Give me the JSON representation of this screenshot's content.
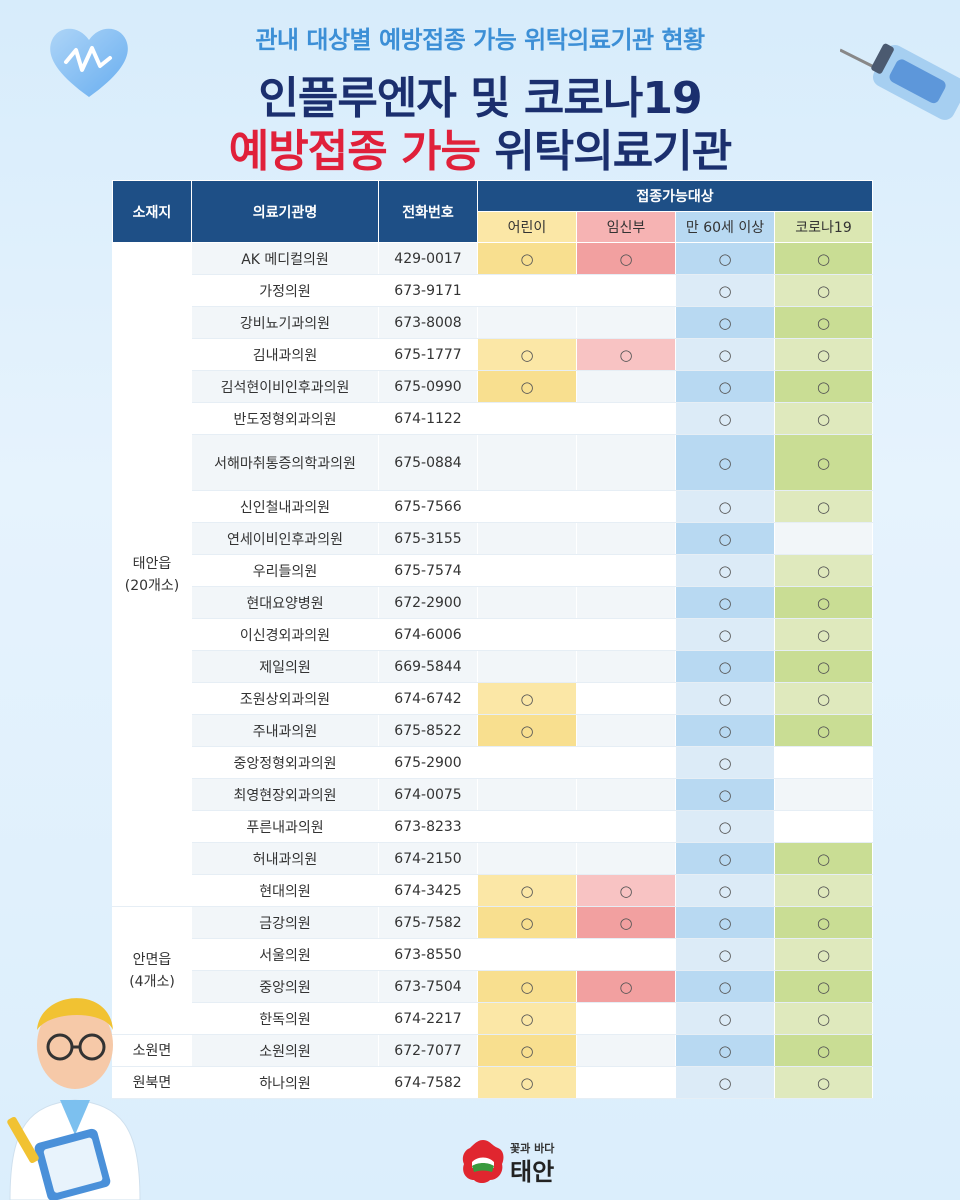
{
  "header": {
    "subtitle": "관내 대상별 예방접종 가능 위탁의료기관 현황",
    "title_line1": "인플루엔자 및 코로나19",
    "title_line2_red": "예방접종 가능",
    "title_line2_rest": " 위탁의료기관"
  },
  "table": {
    "col_region": "소재지",
    "col_name": "의료기관명",
    "col_phone": "전화번호",
    "col_targets": "접종가능대상",
    "sub_child": "어린이",
    "sub_preg": "임신부",
    "sub_60": "만 60세 이상",
    "sub_cov": "코로나19",
    "regions": [
      {
        "label": "태안읍\n(20개소)"
      },
      {
        "label": "안면읍\n(4개소)"
      },
      {
        "label": "소원면"
      },
      {
        "label": "원북면"
      }
    ],
    "rows": [
      {
        "name": "AK 메디컬의원",
        "phone": "429-0017",
        "child": "○",
        "preg": "○",
        "s60": "○",
        "cov": "○"
      },
      {
        "name": "가정의원",
        "phone": "673-9171",
        "child": "",
        "preg": "",
        "s60": "○",
        "cov": "○"
      },
      {
        "name": "강비뇨기과의원",
        "phone": "673-8008",
        "child": "",
        "preg": "",
        "s60": "○",
        "cov": "○"
      },
      {
        "name": "김내과의원",
        "phone": "675-1777",
        "child": "○",
        "preg": "○",
        "s60": "○",
        "cov": "○"
      },
      {
        "name": "김석현이비인후과의원",
        "phone": "675-0990",
        "child": "○",
        "preg": "",
        "s60": "○",
        "cov": "○"
      },
      {
        "name": "반도정형외과의원",
        "phone": "674-1122",
        "child": "",
        "preg": "",
        "s60": "○",
        "cov": "○"
      },
      {
        "name": "서해마취통증의학과의원",
        "phone": "675-0884",
        "child": "",
        "preg": "",
        "s60": "○",
        "cov": "○"
      },
      {
        "name": "신인철내과의원",
        "phone": "675-7566",
        "child": "",
        "preg": "",
        "s60": "○",
        "cov": "○"
      },
      {
        "name": "연세이비인후과의원",
        "phone": "675-3155",
        "child": "",
        "preg": "",
        "s60": "○",
        "cov": ""
      },
      {
        "name": "우리들의원",
        "phone": "675-7574",
        "child": "",
        "preg": "",
        "s60": "○",
        "cov": "○"
      },
      {
        "name": "현대요양병원",
        "phone": "672-2900",
        "child": "",
        "preg": "",
        "s60": "○",
        "cov": "○"
      },
      {
        "name": "이신경외과의원",
        "phone": "674-6006",
        "child": "",
        "preg": "",
        "s60": "○",
        "cov": "○"
      },
      {
        "name": "제일의원",
        "phone": "669-5844",
        "child": "",
        "preg": "",
        "s60": "○",
        "cov": "○"
      },
      {
        "name": "조원상외과의원",
        "phone": "674-6742",
        "child": "○",
        "preg": "",
        "s60": "○",
        "cov": "○"
      },
      {
        "name": "주내과의원",
        "phone": "675-8522",
        "child": "○",
        "preg": "",
        "s60": "○",
        "cov": "○"
      },
      {
        "name": "중앙정형외과의원",
        "phone": "675-2900",
        "child": "",
        "preg": "",
        "s60": "○",
        "cov": ""
      },
      {
        "name": "최영현장외과의원",
        "phone": "674-0075",
        "child": "",
        "preg": "",
        "s60": "○",
        "cov": ""
      },
      {
        "name": "푸른내과의원",
        "phone": "673-8233",
        "child": "",
        "preg": "",
        "s60": "○",
        "cov": ""
      },
      {
        "name": "허내과의원",
        "phone": "674-2150",
        "child": "",
        "preg": "",
        "s60": "○",
        "cov": "○"
      },
      {
        "name": "현대의원",
        "phone": "674-3425",
        "child": "○",
        "preg": "○",
        "s60": "○",
        "cov": "○"
      },
      {
        "name": "금강의원",
        "phone": "675-7582",
        "child": "○",
        "preg": "○",
        "s60": "○",
        "cov": "○"
      },
      {
        "name": "서울의원",
        "phone": "673-8550",
        "child": "",
        "preg": "",
        "s60": "○",
        "cov": "○"
      },
      {
        "name": "중앙의원",
        "phone": "673-7504",
        "child": "○",
        "preg": "○",
        "s60": "○",
        "cov": "○"
      },
      {
        "name": "한독의원",
        "phone": "674-2217",
        "child": "○",
        "preg": "",
        "s60": "○",
        "cov": "○"
      },
      {
        "name": "소원의원",
        "phone": "672-7077",
        "child": "○",
        "preg": "",
        "s60": "○",
        "cov": "○"
      },
      {
        "name": "하나의원",
        "phone": "674-7582",
        "child": "○",
        "preg": "",
        "s60": "○",
        "cov": "○"
      }
    ]
  },
  "logo": {
    "small": "꽃과 바다",
    "big": "태안",
    "colors": {
      "red": "#e0262f",
      "green": "#3a9a3e"
    }
  }
}
